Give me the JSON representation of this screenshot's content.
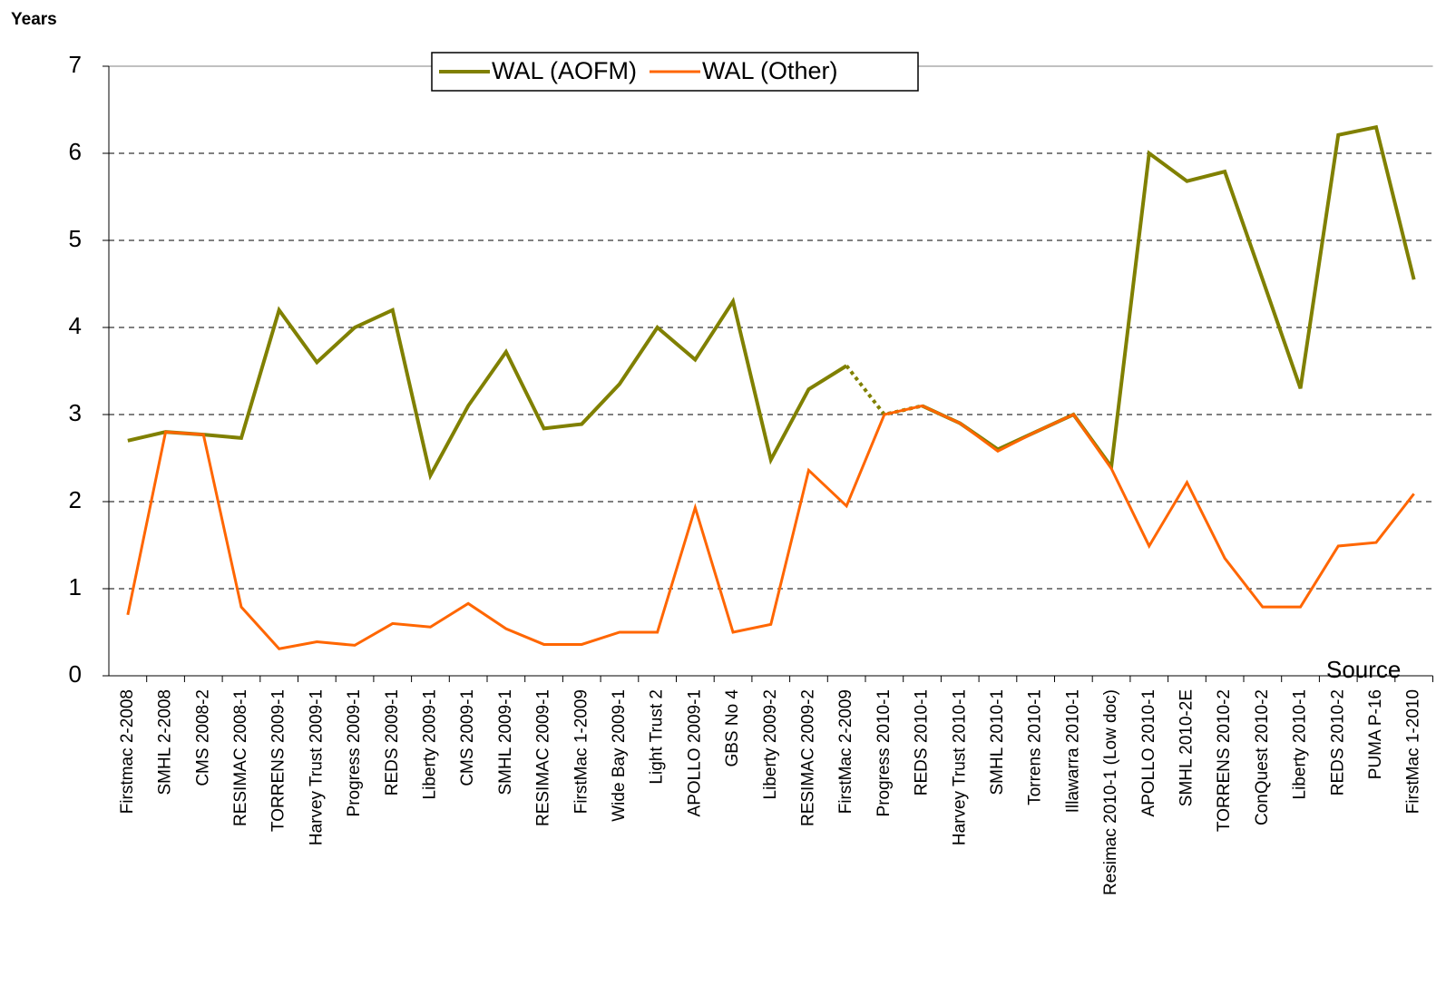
{
  "chart_data": {
    "type": "line",
    "y_axis_label": "Years",
    "source": "Source",
    "categories": [
      "Firstmac 2-2008",
      "SMHL 2-2008",
      "CMS 2008-2",
      "RESIMAC 2008-1",
      "TORRENS 2009-1",
      "Harvey Trust 2009-1",
      "Progress 2009-1",
      "REDS 2009-1",
      "Liberty 2009-1",
      "CMS 2009-1",
      "SMHL 2009-1",
      "RESIMAC 2009-1",
      "FirstMac 1-2009",
      "Wide Bay 2009-1",
      "Light Trust 2",
      "APOLLO 2009-1",
      "GBS No 4",
      "Liberty 2009-2",
      "RESIMAC 2009-2",
      "FirstMac 2-2009",
      "Progress 2010-1",
      "REDS 2010-1",
      "Harvey Trust 2010-1",
      "SMHL 2010-1",
      "Torrens 2010-1",
      "Illawarra 2010-1",
      "Resimac 2010-1 (Low doc)",
      "APOLLO 2010-1",
      "SMHL 2010-2E",
      "TORRENS 2010-2",
      "ConQuest 2010-2",
      "Liberty 2010-1",
      "REDS 2010-2",
      "PUMA P-16",
      "FirstMac 1-2010"
    ],
    "series": [
      {
        "name": "WAL (AOFM)",
        "color": "#808000",
        "dotted_segment": [
          19,
          21
        ],
        "values": [
          2.7,
          2.8,
          2.77,
          2.73,
          4.2,
          3.6,
          4.0,
          4.2,
          2.3,
          3.1,
          3.72,
          2.84,
          2.89,
          3.35,
          4.0,
          3.63,
          4.3,
          2.48,
          3.29,
          3.56,
          3.0,
          3.1,
          2.9,
          2.6,
          2.8,
          3.0,
          2.4,
          6.0,
          5.68,
          5.79,
          4.55,
          3.3,
          6.21,
          6.3,
          4.55
        ]
      },
      {
        "name": "WAL (Other)",
        "color": "#ff6600",
        "values": [
          0.7,
          2.8,
          2.77,
          0.79,
          0.31,
          0.39,
          0.35,
          0.6,
          0.56,
          0.83,
          0.54,
          0.36,
          0.36,
          0.5,
          0.5,
          1.93,
          0.5,
          0.59,
          2.36,
          1.95,
          3.0,
          3.1,
          2.9,
          2.58,
          2.8,
          3.0,
          2.38,
          1.49,
          2.22,
          1.35,
          0.79,
          0.79,
          1.49,
          1.53,
          2.09
        ]
      }
    ],
    "ylim": [
      0,
      7
    ],
    "yticks": [
      0,
      1,
      2,
      3,
      4,
      5,
      6,
      7
    ],
    "grid": true
  }
}
